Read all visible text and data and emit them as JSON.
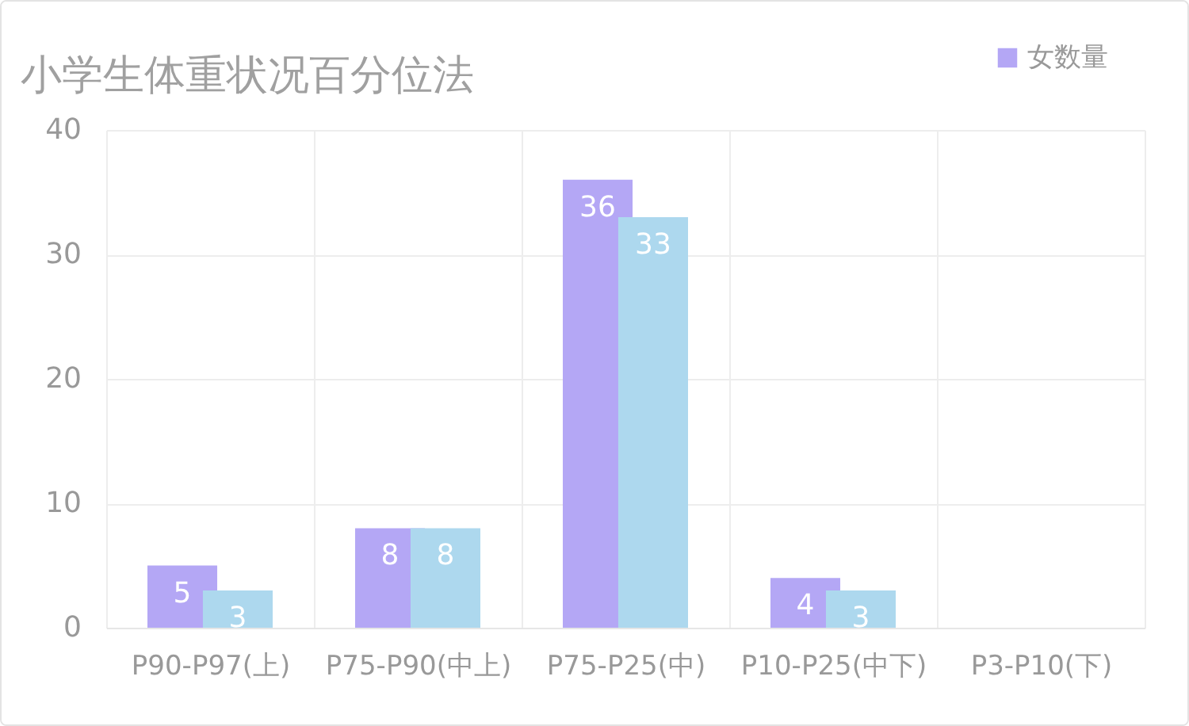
{
  "chart_data": {
    "type": "bar",
    "title": "小学生体重状况百分位法",
    "categories": [
      "P90-P97(上)",
      "P75-P90(中上)",
      "P75-P25(中)",
      "P10-P25(中下)",
      "P3-P10(下)"
    ],
    "series": [
      {
        "name": "女数量",
        "color": "#b4a7f5",
        "values": [
          5,
          8,
          36,
          4,
          null
        ]
      },
      {
        "color": "#add8ee",
        "values": [
          3,
          8,
          33,
          3,
          null
        ]
      }
    ],
    "ylim": [
      0,
      40
    ],
    "yticks": [
      0,
      10,
      20,
      30,
      40
    ],
    "grid": true,
    "legend": "top right",
    "data_labels": true
  }
}
